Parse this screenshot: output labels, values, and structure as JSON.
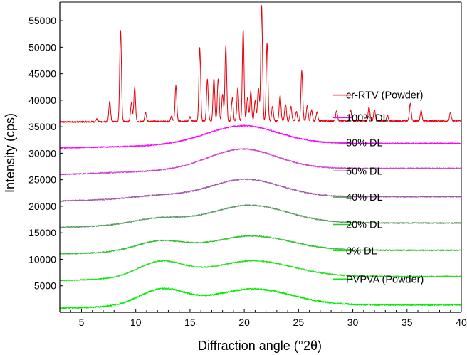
{
  "chart_data": {
    "type": "line",
    "xlabel": "Diffraction angle (°2θ)",
    "ylabel": "Intensity (cps)",
    "xlim": [
      3,
      40
    ],
    "ylim": [
      0,
      58500
    ],
    "x_ticks": [
      5,
      10,
      15,
      20,
      25,
      30,
      35,
      40
    ],
    "x_tick_labels": [
      "5",
      "10",
      "15",
      "20",
      "25",
      "30",
      "35",
      "40"
    ],
    "y_ticks": [
      5000,
      10000,
      15000,
      20000,
      25000,
      30000,
      35000,
      40000,
      45000,
      50000,
      55000
    ],
    "y_tick_labels": [
      "5000",
      "10000",
      "15000",
      "20000",
      "25000",
      "30000",
      "35000",
      "40000",
      "45000",
      "50000",
      "55000"
    ],
    "grid": false,
    "legend_placement": "right, stacked next to each trace",
    "series": [
      {
        "name": "cr-RTV (Powder)",
        "color": "#e8000b",
        "baseline": [
          [
            3,
            35900
          ],
          [
            20,
            36100
          ],
          [
            40,
            36100
          ]
        ],
        "noise": 150,
        "peaks": [
          [
            6.4,
            500,
            0.08
          ],
          [
            7.6,
            3800,
            0.08
          ],
          [
            8.6,
            17100,
            0.08
          ],
          [
            9.6,
            3500,
            0.08
          ],
          [
            9.9,
            6400,
            0.08
          ],
          [
            10.9,
            1700,
            0.08
          ],
          [
            13.3,
            1000,
            0.08
          ],
          [
            13.7,
            6700,
            0.08
          ],
          [
            15.0,
            800,
            0.08
          ],
          [
            15.9,
            13800,
            0.08
          ],
          [
            16.6,
            7800,
            0.08
          ],
          [
            17.2,
            8000,
            0.08
          ],
          [
            17.6,
            8000,
            0.08
          ],
          [
            18.0,
            5000,
            0.08
          ],
          [
            18.3,
            14300,
            0.08
          ],
          [
            18.9,
            4400,
            0.08
          ],
          [
            19.4,
            6300,
            0.08
          ],
          [
            19.9,
            17300,
            0.08
          ],
          [
            20.3,
            4400,
            0.08
          ],
          [
            20.6,
            5600,
            0.08
          ],
          [
            21.0,
            3700,
            0.08
          ],
          [
            21.3,
            6200,
            0.08
          ],
          [
            21.6,
            21800,
            0.08
          ],
          [
            22.1,
            14600,
            0.08
          ],
          [
            22.6,
            2700,
            0.08
          ],
          [
            23.3,
            4800,
            0.08
          ],
          [
            23.8,
            3200,
            0.08
          ],
          [
            24.3,
            2700,
            0.08
          ],
          [
            24.8,
            1800,
            0.08
          ],
          [
            25.3,
            9500,
            0.08
          ],
          [
            25.8,
            2800,
            0.08
          ],
          [
            26.2,
            2000,
            0.08
          ],
          [
            26.7,
            1700,
            0.08
          ],
          [
            28.5,
            2000,
            0.08
          ],
          [
            29.8,
            2000,
            0.08
          ],
          [
            31.5,
            2700,
            0.08
          ],
          [
            32.0,
            2000,
            0.08
          ],
          [
            33.2,
            1000,
            0.08
          ],
          [
            35.3,
            3200,
            0.08
          ],
          [
            36.3,
            2000,
            0.08
          ],
          [
            39.0,
            1500,
            0.08
          ]
        ]
      },
      {
        "name": "100% DL",
        "color": "#ff00ff",
        "baseline": [
          [
            3,
            31000
          ],
          [
            10,
            31300
          ],
          [
            20,
            31900
          ],
          [
            30,
            31850
          ],
          [
            40,
            31850
          ]
        ],
        "humps": [
          [
            19.8,
            3300,
            3.3
          ]
        ],
        "noise": 120
      },
      {
        "name": "80% DL",
        "color": "#cc44cc",
        "baseline": [
          [
            3,
            26000
          ],
          [
            10,
            26500
          ],
          [
            20,
            27100
          ],
          [
            30,
            27150
          ],
          [
            40,
            27150
          ]
        ],
        "humps": [
          [
            19.8,
            3700,
            3.2
          ]
        ],
        "noise": 120
      },
      {
        "name": "60% DL",
        "color": "#a05aa8",
        "baseline": [
          [
            3,
            21000
          ],
          [
            10,
            21400
          ],
          [
            20,
            21800
          ],
          [
            30,
            21800
          ],
          [
            40,
            21800
          ]
        ],
        "humps": [
          [
            12.0,
            500,
            2.2
          ],
          [
            20.1,
            3300,
            3.3
          ]
        ],
        "noise": 120
      },
      {
        "name": "40% DL",
        "color": "#5f9a62",
        "baseline": [
          [
            3,
            16000
          ],
          [
            10,
            16500
          ],
          [
            20,
            16900
          ],
          [
            30,
            16850
          ],
          [
            40,
            16850
          ]
        ],
        "humps": [
          [
            12.0,
            1100,
            2.2
          ],
          [
            20.5,
            3300,
            3.5
          ]
        ],
        "noise": 120
      },
      {
        "name": "20% DL",
        "color": "#33c033",
        "baseline": [
          [
            3,
            11000
          ],
          [
            10,
            11400
          ],
          [
            20,
            11700
          ],
          [
            30,
            11700
          ],
          [
            40,
            11700
          ]
        ],
        "humps": [
          [
            12.2,
            1900,
            2.2
          ],
          [
            20.7,
            2700,
            3.6
          ]
        ],
        "noise": 120
      },
      {
        "name": "0% DL",
        "color": "#22dd22",
        "baseline": [
          [
            3,
            6000
          ],
          [
            10,
            6400
          ],
          [
            20,
            6700
          ],
          [
            30,
            6750
          ],
          [
            40,
            6750
          ]
        ],
        "humps": [
          [
            12.3,
            3000,
            2.1
          ],
          [
            20.8,
            3000,
            3.7
          ]
        ],
        "noise": 120
      },
      {
        "name": "PVPVA (Powder)",
        "color": "#00ee00",
        "baseline": [
          [
            3,
            800
          ],
          [
            10,
            1100
          ],
          [
            20,
            1400
          ],
          [
            30,
            1400
          ],
          [
            40,
            1400
          ]
        ],
        "humps": [
          [
            12.4,
            3100,
            2.1
          ],
          [
            20.8,
            3000,
            3.6
          ]
        ],
        "noise": 150
      }
    ]
  }
}
